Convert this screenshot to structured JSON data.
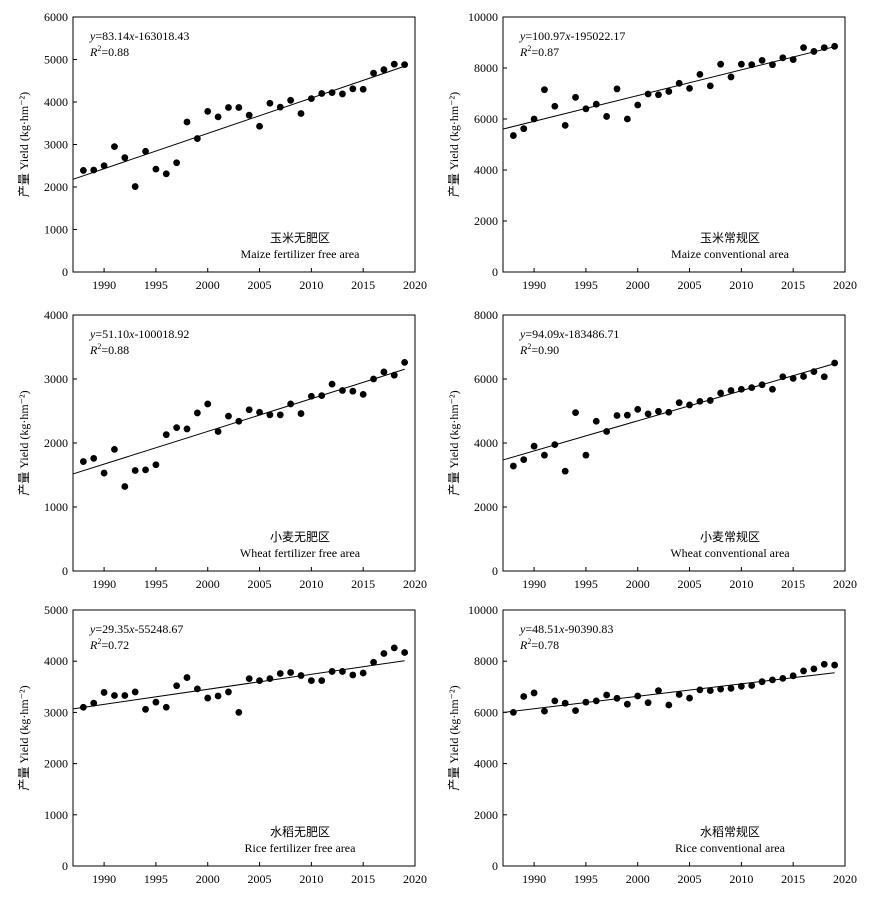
{
  "chart_data": [
    {
      "type": "scatter",
      "ylabel": "产量 Yield (kg·hm⁻²)",
      "equation": {
        "y": "y",
        "eq": "=83.14",
        "x": "x",
        "rest": "-163018.43"
      },
      "r2": {
        "r": "R",
        "sup": "2",
        "val": "=0.88"
      },
      "label_cn": "玉米无肥区",
      "label_en": "Maize fertilizer free area",
      "xlim": [
        1987,
        2020
      ],
      "ylim": [
        0,
        6000
      ],
      "xticks": [
        1990,
        1995,
        2000,
        2005,
        2010,
        2015,
        2020
      ],
      "yticks": [
        0,
        1000,
        2000,
        3000,
        4000,
        5000,
        6000
      ],
      "trend": {
        "slope": 83.14,
        "intercept": -163018.43,
        "x": [
          1987,
          2019
        ]
      },
      "points": {
        "x": [
          1988,
          1989,
          1990,
          1991,
          1992,
          1993,
          1994,
          1995,
          1996,
          1997,
          1998,
          1999,
          2000,
          2001,
          2002,
          2003,
          2004,
          2005,
          2006,
          2007,
          2008,
          2009,
          2010,
          2011,
          2012,
          2013,
          2014,
          2015,
          2016,
          2017,
          2018,
          2019
        ],
        "y": [
          2390,
          2400,
          2500,
          2950,
          2690,
          2010,
          2840,
          2420,
          2310,
          2570,
          3530,
          3140,
          3780,
          3650,
          3870,
          3870,
          3690,
          3430,
          3970,
          3880,
          4040,
          3730,
          4080,
          4200,
          4220,
          4190,
          4310,
          4300,
          4680,
          4760,
          4890,
          4880
        ]
      }
    },
    {
      "type": "scatter",
      "ylabel": "产量 Yield (kg·hm⁻²)",
      "equation": {
        "y": "y",
        "eq": "=100.97",
        "x": "x",
        "rest": "-195022.17"
      },
      "r2": {
        "r": "R",
        "sup": "2",
        "val": "=0.87"
      },
      "label_cn": "玉米常规区",
      "label_en": "Maize conventional area",
      "xlim": [
        1987,
        2020
      ],
      "ylim": [
        0,
        10000
      ],
      "xticks": [
        1990,
        1995,
        2000,
        2005,
        2010,
        2015,
        2020
      ],
      "yticks": [
        0,
        2000,
        4000,
        6000,
        8000,
        10000
      ],
      "trend": {
        "slope": 100.97,
        "intercept": -195022.17,
        "x": [
          1987,
          2019
        ]
      },
      "points": {
        "x": [
          1988,
          1989,
          1990,
          1991,
          1992,
          1993,
          1994,
          1995,
          1996,
          1997,
          1998,
          1999,
          2000,
          2001,
          2002,
          2003,
          2004,
          2005,
          2006,
          2007,
          2008,
          2009,
          2010,
          2011,
          2012,
          2013,
          2014,
          2015,
          2016,
          2017,
          2018,
          2019
        ],
        "y": [
          5350,
          5620,
          6000,
          7150,
          6500,
          5750,
          6850,
          6400,
          6580,
          6100,
          7180,
          6000,
          6550,
          6980,
          6950,
          7080,
          7400,
          7200,
          7750,
          7300,
          8150,
          7650,
          8150,
          8130,
          8300,
          8130,
          8400,
          8330,
          8800,
          8650,
          8800,
          8850
        ]
      }
    },
    {
      "type": "scatter",
      "ylabel": "产量 Yield (kg·hm⁻²)",
      "equation": {
        "y": "y",
        "eq": "=51.10",
        "x": "x",
        "rest": "-100018.92"
      },
      "r2": {
        "r": "R",
        "sup": "2",
        "val": "=0.88"
      },
      "label_cn": "小麦无肥区",
      "label_en": "Wheat fertilizer free area",
      "xlim": [
        1987,
        2020
      ],
      "ylim": [
        0,
        4000
      ],
      "xticks": [
        1990,
        1995,
        2000,
        2005,
        2010,
        2015,
        2020
      ],
      "yticks": [
        0,
        1000,
        2000,
        3000,
        4000
      ],
      "trend": {
        "slope": 51.1,
        "intercept": -100018.92,
        "x": [
          1987,
          2019
        ]
      },
      "points": {
        "x": [
          1988,
          1989,
          1990,
          1991,
          1992,
          1993,
          1994,
          1995,
          1996,
          1997,
          1998,
          1999,
          2000,
          2001,
          2002,
          2003,
          2004,
          2005,
          2006,
          2007,
          2008,
          2009,
          2010,
          2011,
          2012,
          2013,
          2014,
          2015,
          2016,
          2017,
          2018,
          2019
        ],
        "y": [
          1710,
          1760,
          1530,
          1900,
          1320,
          1570,
          1580,
          1660,
          2130,
          2240,
          2220,
          2470,
          2610,
          2180,
          2420,
          2340,
          2520,
          2480,
          2440,
          2440,
          2610,
          2460,
          2730,
          2740,
          2920,
          2820,
          2810,
          2760,
          3000,
          3110,
          3060,
          3260
        ]
      }
    },
    {
      "type": "scatter",
      "ylabel": "产量 Yield (kg·hm⁻²)",
      "equation": {
        "y": "y",
        "eq": "=94.09",
        "x": "x",
        "rest": "-183486.71"
      },
      "r2": {
        "r": "R",
        "sup": "2",
        "val": "=0.90"
      },
      "label_cn": "小麦常规区",
      "label_en": "Wheat conventional area",
      "xlim": [
        1987,
        2020
      ],
      "ylim": [
        0,
        8000
      ],
      "xticks": [
        1990,
        1995,
        2000,
        2005,
        2010,
        2015,
        2020
      ],
      "yticks": [
        0,
        2000,
        4000,
        6000,
        8000
      ],
      "trend": {
        "slope": 94.09,
        "intercept": -183486.71,
        "x": [
          1987,
          2019
        ]
      },
      "points": {
        "x": [
          1988,
          1989,
          1990,
          1991,
          1992,
          1993,
          1994,
          1995,
          1996,
          1997,
          1998,
          1999,
          2000,
          2001,
          2002,
          2003,
          2004,
          2005,
          2006,
          2007,
          2008,
          2009,
          2010,
          2011,
          2012,
          2013,
          2014,
          2015,
          2016,
          2017,
          2018,
          2019
        ],
        "y": [
          3280,
          3480,
          3900,
          3620,
          3950,
          3120,
          4950,
          3620,
          4680,
          4360,
          4860,
          4870,
          5050,
          4910,
          4990,
          4960,
          5260,
          5190,
          5300,
          5330,
          5560,
          5640,
          5680,
          5730,
          5820,
          5680,
          6070,
          6020,
          6080,
          6230,
          6070,
          6500
        ]
      }
    },
    {
      "type": "scatter",
      "ylabel": "产量 Yield (kg·hm⁻²)",
      "equation": {
        "y": "y",
        "eq": "=29.35",
        "x": "x",
        "rest": "-55248.67"
      },
      "r2": {
        "r": "R",
        "sup": "2",
        "val": "=0.72"
      },
      "label_cn": "水稻无肥区",
      "label_en": "Rice fertilizer free area",
      "xlim": [
        1987,
        2020
      ],
      "ylim": [
        0,
        5000
      ],
      "xticks": [
        1990,
        1995,
        2000,
        2005,
        2010,
        2015,
        2020
      ],
      "yticks": [
        0,
        1000,
        2000,
        3000,
        4000,
        5000
      ],
      "trend": {
        "slope": 29.35,
        "intercept": -55248.67,
        "x": [
          1987,
          2019
        ]
      },
      "points": {
        "x": [
          1988,
          1989,
          1990,
          1991,
          1992,
          1993,
          1994,
          1995,
          1996,
          1997,
          1998,
          1999,
          2000,
          2001,
          2002,
          2003,
          2004,
          2005,
          2006,
          2007,
          2008,
          2009,
          2010,
          2011,
          2012,
          2013,
          2014,
          2015,
          2016,
          2017,
          2018,
          2019
        ],
        "y": [
          3100,
          3180,
          3390,
          3330,
          3330,
          3400,
          3060,
          3200,
          3100,
          3520,
          3680,
          3460,
          3280,
          3320,
          3400,
          3000,
          3660,
          3620,
          3660,
          3760,
          3780,
          3720,
          3620,
          3620,
          3800,
          3800,
          3730,
          3770,
          3980,
          4150,
          4260,
          4170
        ]
      }
    },
    {
      "type": "scatter",
      "ylabel": "产量 Yield (kg·hm⁻²)",
      "equation": {
        "y": "y",
        "eq": "=48.51",
        "x": "x",
        "rest": "-90390.83"
      },
      "r2": {
        "r": "R",
        "sup": "2",
        "val": "=0.78"
      },
      "label_cn": "水稻常规区",
      "label_en": "Rice conventional area",
      "xlim": [
        1987,
        2020
      ],
      "ylim": [
        0,
        10000
      ],
      "xticks": [
        1990,
        1995,
        2000,
        2005,
        2010,
        2015,
        2020
      ],
      "yticks": [
        0,
        2000,
        4000,
        6000,
        8000,
        10000
      ],
      "trend": {
        "slope": 48.51,
        "intercept": -90390.83,
        "x": [
          1987,
          2019
        ]
      },
      "points": {
        "x": [
          1988,
          1989,
          1990,
          1991,
          1992,
          1993,
          1994,
          1995,
          1996,
          1997,
          1998,
          1999,
          2000,
          2001,
          2002,
          2003,
          2004,
          2005,
          2006,
          2007,
          2008,
          2009,
          2010,
          2011,
          2012,
          2013,
          2014,
          2015,
          2016,
          2017,
          2018,
          2019
        ],
        "y": [
          6000,
          6620,
          6760,
          6050,
          6450,
          6360,
          6070,
          6400,
          6450,
          6680,
          6550,
          6320,
          6640,
          6380,
          6850,
          6290,
          6700,
          6560,
          6880,
          6850,
          6910,
          6940,
          7020,
          7050,
          7200,
          7270,
          7330,
          7430,
          7620,
          7700,
          7880,
          7850
        ]
      }
    }
  ]
}
